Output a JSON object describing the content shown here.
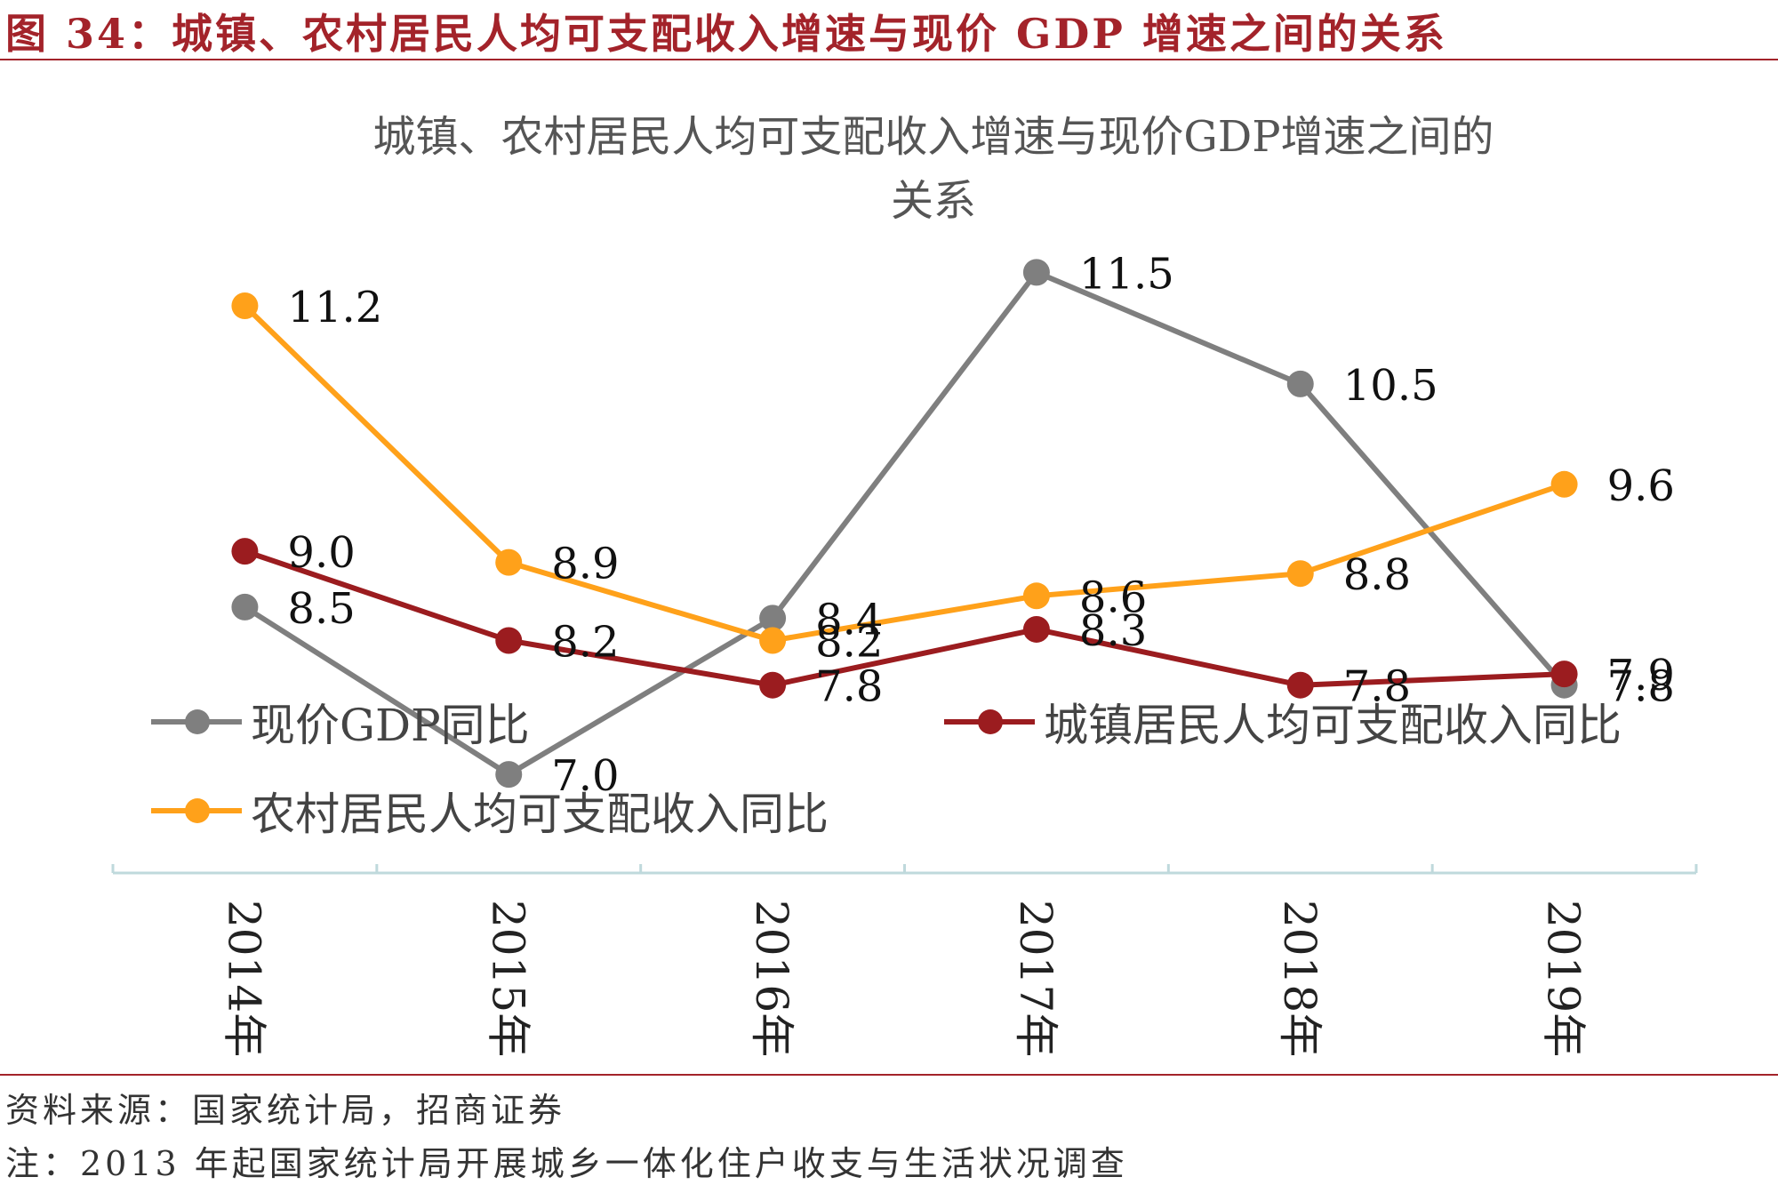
{
  "figure_title": "图 34：城镇、农村居民人均可支配收入增速与现价 GDP 增速之间的关系",
  "source": "资料来源：国家统计局，招商证券",
  "note": "注：2013 年起国家统计局开展城乡一体化住户收支与生活状况调查",
  "chart_data": {
    "type": "line",
    "title_line1": "城镇、农村居民人均可支配收入增速与现价GDP增速之间的",
    "title_line2": "关系",
    "categories": [
      "2014年",
      "2015年",
      "2016年",
      "2017年",
      "2018年",
      "2019年"
    ],
    "series": [
      {
        "name": "现价GDP同比",
        "color": "#7f7f7f",
        "values": [
          8.5,
          7.0,
          8.4,
          11.5,
          10.5,
          7.8
        ]
      },
      {
        "name": "城镇居民人均可支配收入同比",
        "color": "#9b1c1f",
        "values": [
          9.0,
          8.2,
          7.8,
          8.3,
          7.8,
          7.9
        ]
      },
      {
        "name": "农村居民人均可支配收入同比",
        "color": "#ffa11a",
        "values": [
          11.2,
          8.9,
          8.2,
          8.6,
          8.8,
          9.6
        ]
      }
    ],
    "data_labels": [
      [
        "8.5",
        "7.0",
        "8.4",
        "11.5",
        "10.5",
        "7.8"
      ],
      [
        "9.0",
        "8.2",
        "7.8",
        "8.3",
        "7.8",
        "7.9"
      ],
      [
        "11.2",
        "8.9",
        "8.2",
        "8.6",
        "8.8",
        "9.6"
      ]
    ],
    "legend_position": "bottom",
    "grid": false
  }
}
